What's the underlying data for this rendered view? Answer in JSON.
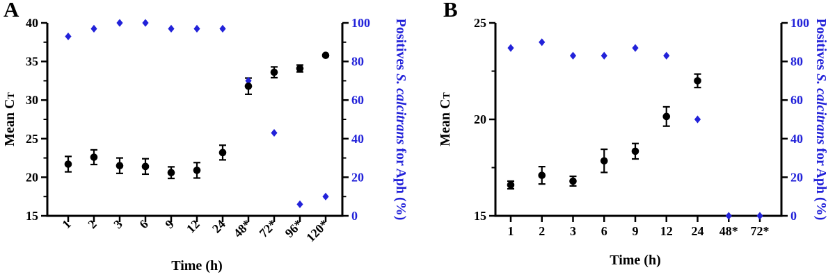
{
  "figure": {
    "background": "#ffffff",
    "colors": {
      "black": "#000000",
      "blue": "#2222d9"
    }
  },
  "chart_data": [
    {
      "type": "scatter",
      "panel": "A",
      "xlabel": "Time (h)",
      "categories": [
        "1",
        "2",
        "3",
        "6",
        "9",
        "12",
        "24",
        "48*",
        "72*",
        "96*",
        "120*"
      ],
      "left_axis": {
        "label": "Mean CT",
        "label_parts": [
          {
            "t": "Mean C"
          },
          {
            "t": "T",
            "small": true
          }
        ],
        "lim": [
          15,
          40
        ],
        "ticks": [
          15,
          20,
          25,
          30,
          35,
          40
        ],
        "minor_step": 2.5
      },
      "right_axis": {
        "label": "Positives S. calcitrans for Aph (%)",
        "label_parts": [
          {
            "t": "Positives "
          },
          {
            "t": "S. calcitrans",
            "italic": true
          },
          {
            "t": " for Aph (%)"
          }
        ],
        "lim": [
          0,
          100
        ],
        "ticks": [
          0,
          20,
          40,
          60,
          80,
          100
        ],
        "minor_step": 10
      },
      "series": [
        {
          "name": "Mean CT",
          "axis": "left",
          "marker": "circle",
          "color": "#000000",
          "values": [
            21.7,
            22.6,
            21.5,
            21.4,
            20.6,
            20.9,
            23.2,
            31.8,
            33.6,
            34.1,
            35.8
          ],
          "errors": [
            1.0,
            0.95,
            1.0,
            1.0,
            0.75,
            1.0,
            0.95,
            1.05,
            0.7,
            0.45,
            null
          ]
        },
        {
          "name": "Positives S. calcitrans for Aph (%)",
          "axis": "right",
          "marker": "diamond",
          "color": "#2222d9",
          "values": [
            93,
            97,
            100,
            100,
            97,
            97,
            97,
            70,
            43,
            6,
            10
          ],
          "errors": null
        }
      ]
    },
    {
      "type": "scatter",
      "panel": "B",
      "xlabel": "Time (h)",
      "categories": [
        "1",
        "2",
        "3",
        "6",
        "9",
        "12",
        "24",
        "48*",
        "72*"
      ],
      "left_axis": {
        "label": "Mean CT",
        "label_parts": [
          {
            "t": "Mean C"
          },
          {
            "t": "T",
            "small": true
          }
        ],
        "lim": [
          15,
          25
        ],
        "ticks": [
          15,
          20,
          25
        ],
        "minor_step": 2.5
      },
      "right_axis": {
        "label": "Positives S. calcitrans for Aph (%)",
        "label_parts": [
          {
            "t": "Positives "
          },
          {
            "t": "S. calcitrans",
            "italic": true
          },
          {
            "t": " for Aph (%)"
          }
        ],
        "lim": [
          0,
          100
        ],
        "ticks": [
          0,
          20,
          40,
          60,
          80,
          100
        ],
        "minor_step": null
      },
      "series": [
        {
          "name": "Mean CT",
          "axis": "left",
          "marker": "circle",
          "color": "#000000",
          "values": [
            16.6,
            17.1,
            16.8,
            17.85,
            18.35,
            20.15,
            22.0,
            null,
            null
          ],
          "errors": [
            0.2,
            0.45,
            0.25,
            0.6,
            0.4,
            0.5,
            0.35,
            null,
            null
          ]
        },
        {
          "name": "Positives S. calcitrans for Aph (%)",
          "axis": "right",
          "marker": "diamond",
          "color": "#2222d9",
          "values": [
            87,
            90,
            83,
            83,
            87,
            83,
            50,
            0,
            0
          ],
          "errors": null
        }
      ]
    }
  ]
}
